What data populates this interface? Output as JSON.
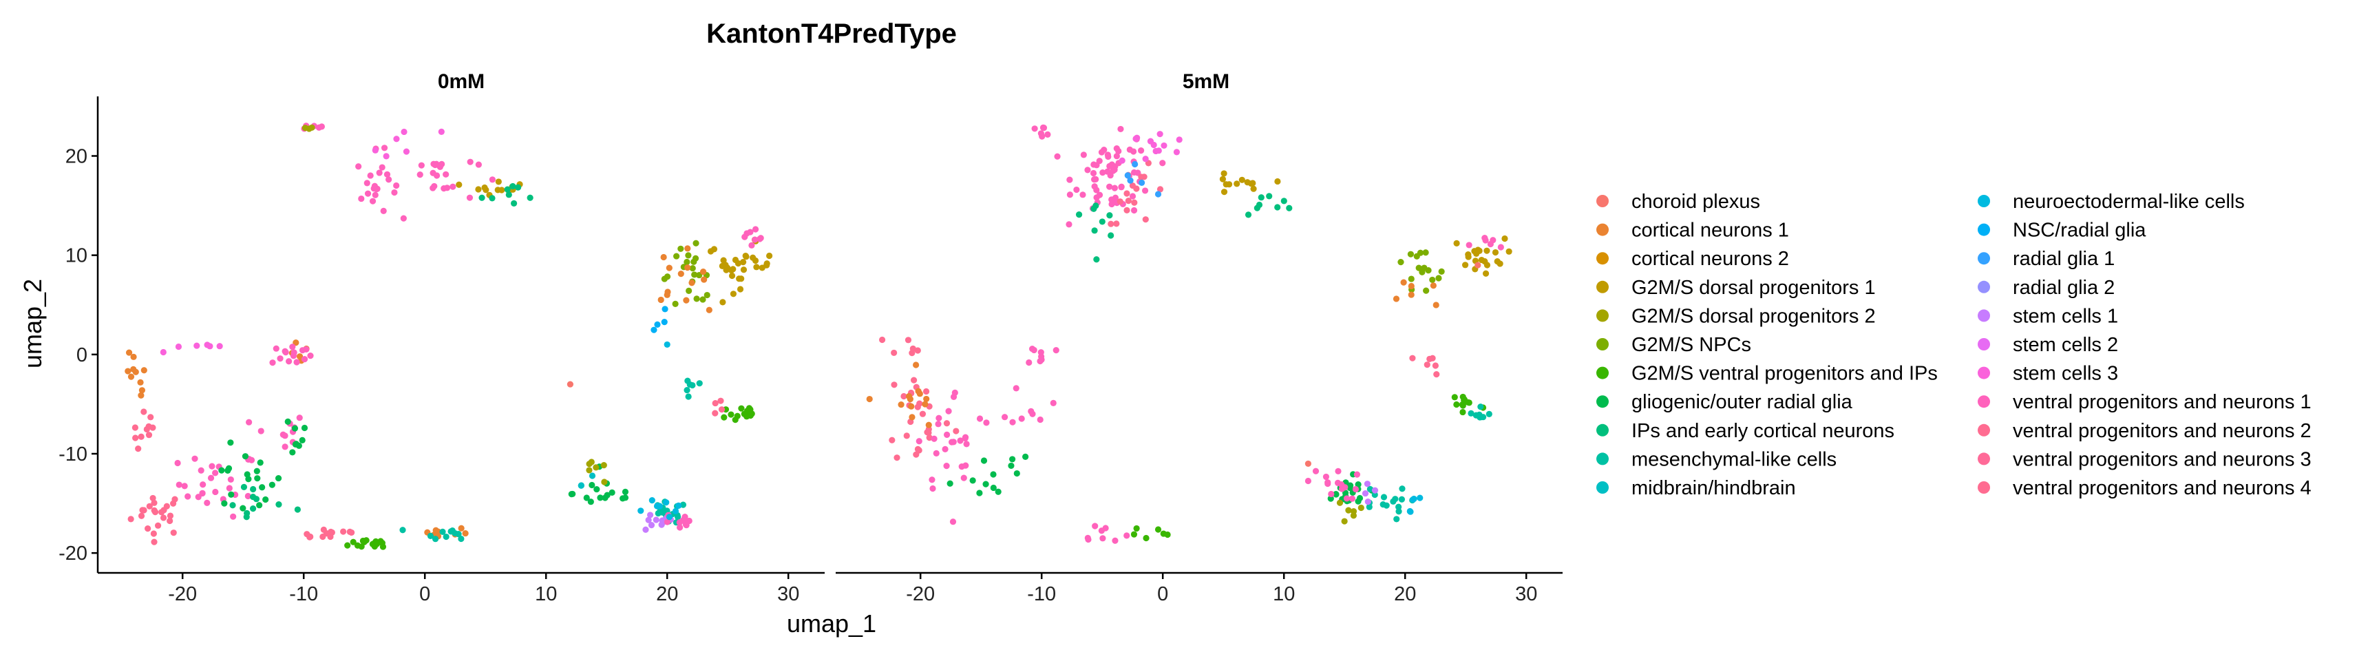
{
  "chart_data": {
    "type": "scatter",
    "title": "KantonT4PredType",
    "xlabel": "umap_1",
    "ylabel": "umap_2",
    "xlim": [
      -27,
      33
    ],
    "ylim": [
      -22,
      26
    ],
    "x_ticks": [
      -20,
      -10,
      0,
      10,
      20,
      30
    ],
    "y_ticks": [
      -20,
      -10,
      0,
      10,
      20
    ],
    "facets": [
      {
        "name": "0mM",
        "clusters": [
          {
            "cat": 20,
            "cx": -22,
            "cy": -16,
            "sx": 2,
            "sy": 2,
            "n": 22
          },
          {
            "cat": 20,
            "cx": -23,
            "cy": -8,
            "sx": 1,
            "sy": 2,
            "n": 10
          },
          {
            "cat": 19,
            "cx": -17,
            "cy": -13,
            "sx": 3,
            "sy": 3,
            "n": 25
          },
          {
            "cat": 8,
            "cx": -15,
            "cy": -13,
            "sx": 3,
            "sy": 3,
            "n": 18
          },
          {
            "cat": 9,
            "cx": -14,
            "cy": -15,
            "sx": 3,
            "sy": 2,
            "n": 10
          },
          {
            "cat": 2,
            "cx": -24,
            "cy": -3,
            "sx": 1,
            "sy": 3,
            "n": 10
          },
          {
            "cat": 2,
            "cx": -10,
            "cy": 0,
            "sx": 1,
            "sy": 1,
            "n": 5
          },
          {
            "cat": 19,
            "cx": -11,
            "cy": 0,
            "sx": 1.5,
            "sy": 1,
            "n": 14
          },
          {
            "cat": 18,
            "cx": -19,
            "cy": 1,
            "sx": 3,
            "sy": 1,
            "n": 6
          },
          {
            "cat": 19,
            "cx": -12,
            "cy": -8,
            "sx": 2,
            "sy": 2,
            "n": 10
          },
          {
            "cat": 8,
            "cx": -11,
            "cy": -8,
            "sx": 1.5,
            "sy": 2,
            "n": 8
          },
          {
            "cat": 20,
            "cx": -8,
            "cy": -18,
            "sx": 3,
            "sy": 0.6,
            "n": 12
          },
          {
            "cat": 7,
            "cx": -4,
            "cy": -19,
            "sx": 2,
            "sy": 0.5,
            "n": 15
          },
          {
            "cat": 2,
            "cx": 1,
            "cy": -18,
            "sx": 2.5,
            "sy": 0.6,
            "n": 10
          },
          {
            "cat": 10,
            "cx": 2,
            "cy": -18,
            "sx": 2,
            "sy": 0.5,
            "n": 10
          },
          {
            "cat": 19,
            "cx": -9.5,
            "cy": 23,
            "sx": 0.8,
            "sy": 0.2,
            "n": 5
          },
          {
            "cat": 5,
            "cx": -9.5,
            "cy": 22.8,
            "sx": 0.5,
            "sy": 0.2,
            "n": 3
          },
          {
            "cat": 19,
            "cx": -4,
            "cy": 17,
            "sx": 1.5,
            "sy": 3,
            "n": 20
          },
          {
            "cat": 19,
            "cx": 1,
            "cy": 18,
            "sx": 3,
            "sy": 2.5,
            "n": 20
          },
          {
            "cat": 18,
            "cx": -2,
            "cy": 21,
            "sx": 3,
            "sy": 1.5,
            "n": 6
          },
          {
            "cat": 4,
            "cx": 6,
            "cy": 17,
            "sx": 2,
            "sy": 0.8,
            "n": 12
          },
          {
            "cat": 9,
            "cx": 8,
            "cy": 16,
            "sx": 3,
            "sy": 1,
            "n": 8
          },
          {
            "cat": 4,
            "cx": 26,
            "cy": 9,
            "sx": 2.5,
            "sy": 2,
            "n": 30
          },
          {
            "cat": 6,
            "cx": 22,
            "cy": 8,
            "sx": 2.5,
            "sy": 2.5,
            "n": 20
          },
          {
            "cat": 2,
            "cx": 21,
            "cy": 8,
            "sx": 2,
            "sy": 2.5,
            "n": 12
          },
          {
            "cat": 19,
            "cx": 27,
            "cy": 11,
            "sx": 2,
            "sy": 1.5,
            "n": 8
          },
          {
            "cat": 13,
            "cx": 20,
            "cy": 4,
            "sx": 1,
            "sy": 1.5,
            "n": 4
          },
          {
            "cat": 7,
            "cx": 26,
            "cy": -6,
            "sx": 1.5,
            "sy": 1,
            "n": 14
          },
          {
            "cat": 10,
            "cx": 22,
            "cy": -3,
            "sx": 1,
            "sy": 2,
            "n": 6
          },
          {
            "cat": 20,
            "cx": 24,
            "cy": -5,
            "sx": 1,
            "sy": 1.5,
            "n": 4
          },
          {
            "cat": 8,
            "cx": 15,
            "cy": -14,
            "sx": 2.5,
            "sy": 1.5,
            "n": 15
          },
          {
            "cat": 10,
            "cx": 20,
            "cy": -16,
            "sx": 1.5,
            "sy": 1,
            "n": 20
          },
          {
            "cat": 16,
            "cx": 19,
            "cy": -17,
            "sx": 1.5,
            "sy": 0.8,
            "n": 10
          },
          {
            "cat": 19,
            "cx": 21,
            "cy": -17,
            "sx": 1.2,
            "sy": 1,
            "n": 10
          },
          {
            "cat": 5,
            "cx": 14,
            "cy": -12,
            "sx": 1,
            "sy": 1,
            "n": 6
          },
          {
            "cat": 12,
            "cx": 20,
            "cy": -15,
            "sx": 1.5,
            "sy": 1.5,
            "n": 8
          },
          {
            "cat": 11,
            "cx": 13,
            "cy": -13,
            "sx": 1,
            "sy": 1,
            "n": 3
          }
        ],
        "points": [
          {
            "cat": 1,
            "x": 12,
            "y": -3
          },
          {
            "cat": 12,
            "x": 20,
            "y": 1
          },
          {
            "cat": 2,
            "x": 20,
            "y": 6
          }
        ]
      },
      {
        "name": "5mM",
        "clusters": [
          {
            "cat": 19,
            "cx": -4,
            "cy": 18,
            "sx": 3,
            "sy": 3.5,
            "n": 60
          },
          {
            "cat": 20,
            "cx": -2,
            "cy": 16,
            "sx": 2.5,
            "sy": 2.5,
            "n": 15
          },
          {
            "cat": 18,
            "cx": -1,
            "cy": 21,
            "sx": 3,
            "sy": 2,
            "n": 12
          },
          {
            "cat": 19,
            "cx": -10,
            "cy": 22.5,
            "sx": 0.8,
            "sy": 0.4,
            "n": 6
          },
          {
            "cat": 9,
            "cx": -5,
            "cy": 14,
            "sx": 1.5,
            "sy": 2,
            "n": 8
          },
          {
            "cat": 14,
            "cx": -3,
            "cy": 18,
            "sx": 2,
            "sy": 2,
            "n": 5
          },
          {
            "cat": 4,
            "cx": 6,
            "cy": 17,
            "sx": 2,
            "sy": 1,
            "n": 12
          },
          {
            "cat": 9,
            "cx": 9,
            "cy": 15,
            "sx": 3,
            "sy": 1,
            "n": 8
          },
          {
            "cat": 4,
            "cx": 26,
            "cy": 10,
            "sx": 2,
            "sy": 1.5,
            "n": 20
          },
          {
            "cat": 6,
            "cx": 21,
            "cy": 8,
            "sx": 2.5,
            "sy": 2.5,
            "n": 15
          },
          {
            "cat": 19,
            "cx": 27,
            "cy": 11,
            "sx": 1.5,
            "sy": 1,
            "n": 6
          },
          {
            "cat": 2,
            "cx": 21,
            "cy": 6,
            "sx": 1.5,
            "sy": 2,
            "n": 6
          },
          {
            "cat": 20,
            "cx": 22,
            "cy": -1,
            "sx": 1.5,
            "sy": 1,
            "n": 6
          },
          {
            "cat": 7,
            "cx": 25,
            "cy": -5,
            "sx": 1.5,
            "sy": 1.5,
            "n": 12
          },
          {
            "cat": 10,
            "cx": 26,
            "cy": -6,
            "sx": 1,
            "sy": 1,
            "n": 8
          },
          {
            "cat": 20,
            "cx": -20,
            "cy": -6,
            "sx": 2.5,
            "sy": 5,
            "n": 25
          },
          {
            "cat": 19,
            "cx": -17,
            "cy": -9,
            "sx": 3,
            "sy": 5,
            "n": 25
          },
          {
            "cat": 2,
            "cx": -21,
            "cy": -5,
            "sx": 2,
            "sy": 4,
            "n": 12
          },
          {
            "cat": 8,
            "cx": -14,
            "cy": -12,
            "sx": 3,
            "sy": 3,
            "n": 12
          },
          {
            "cat": 19,
            "cx": -11,
            "cy": -5,
            "sx": 1.5,
            "sy": 2,
            "n": 8
          },
          {
            "cat": 19,
            "cx": -10,
            "cy": 0,
            "sx": 1,
            "sy": 1,
            "n": 8
          },
          {
            "cat": 20,
            "cx": -21,
            "cy": 1,
            "sx": 1.5,
            "sy": 0.8,
            "n": 6
          },
          {
            "cat": 19,
            "cx": -5,
            "cy": -18,
            "sx": 2,
            "sy": 1,
            "n": 8
          },
          {
            "cat": 7,
            "cx": -2,
            "cy": -18,
            "sx": 3,
            "sy": 0.8,
            "n": 6
          },
          {
            "cat": 8,
            "cx": 15,
            "cy": -14,
            "sx": 2,
            "sy": 1.5,
            "n": 22
          },
          {
            "cat": 10,
            "cx": 18,
            "cy": -15,
            "sx": 2,
            "sy": 1.5,
            "n": 15
          },
          {
            "cat": 19,
            "cx": 14,
            "cy": -13,
            "sx": 2,
            "sy": 1.5,
            "n": 15
          },
          {
            "cat": 5,
            "cx": 16,
            "cy": -16,
            "sx": 1.5,
            "sy": 1,
            "n": 6
          },
          {
            "cat": 12,
            "cx": 20,
            "cy": -15,
            "sx": 1,
            "sy": 1,
            "n": 5
          },
          {
            "cat": 16,
            "cx": 17,
            "cy": -14,
            "sx": 1,
            "sy": 1,
            "n": 4
          }
        ],
        "points": [
          {
            "cat": 1,
            "x": 26,
            "y": 9
          },
          {
            "cat": 1,
            "x": 12,
            "y": -11
          }
        ]
      }
    ],
    "legend": [
      {
        "label": "choroid plexus",
        "color": "#F8766D"
      },
      {
        "label": "cortical neurons 1",
        "color": "#EA8331"
      },
      {
        "label": "cortical neurons 2",
        "color": "#D89000"
      },
      {
        "label": "G2M/S dorsal progenitors 1",
        "color": "#C09B00"
      },
      {
        "label": "G2M/S dorsal progenitors 2",
        "color": "#A3A500"
      },
      {
        "label": "G2M/S NPCs",
        "color": "#7CAE00"
      },
      {
        "label": "G2M/S ventral progenitors and IPs",
        "color": "#39B600"
      },
      {
        "label": "gliogenic/outer radial glia",
        "color": "#00BB4E"
      },
      {
        "label": "IPs and early cortical neurons",
        "color": "#00BF7D"
      },
      {
        "label": "mesenchymal-like cells",
        "color": "#00C1A3"
      },
      {
        "label": "midbrain/hindbrain",
        "color": "#00BFC4"
      },
      {
        "label": "neuroectodermal-like cells",
        "color": "#00BAE0"
      },
      {
        "label": "NSC/radial glia",
        "color": "#00B0F6"
      },
      {
        "label": "radial glia 1",
        "color": "#35A2FF"
      },
      {
        "label": "radial glia 2",
        "color": "#9590FF"
      },
      {
        "label": "stem cells 1",
        "color": "#C77CFF"
      },
      {
        "label": "stem cells 2",
        "color": "#E76BF3"
      },
      {
        "label": "stem cells 3",
        "color": "#FA62DB"
      },
      {
        "label": "ventral progenitors and neurons 1",
        "color": "#FF62BC"
      },
      {
        "label": "ventral progenitors and neurons 2",
        "color": "#FF6C91"
      },
      {
        "label": "ventral progenitors and neurons 3",
        "color": "#FF6A98"
      },
      {
        "label": "ventral progenitors and neurons 4",
        "color": "#FF6C91"
      }
    ]
  }
}
